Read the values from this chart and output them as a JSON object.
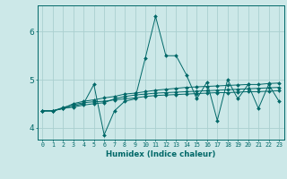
{
  "xlabel": "Humidex (Indice chaleur)",
  "ylabel": "",
  "bg_color": "#cce8e8",
  "line_color": "#006868",
  "grid_color": "#aad0d0",
  "xlim": [
    -0.5,
    23.5
  ],
  "ylim": [
    3.75,
    6.55
  ],
  "xtick_vals": [
    0,
    1,
    2,
    3,
    4,
    5,
    6,
    7,
    8,
    9,
    10,
    11,
    12,
    13,
    14,
    15,
    16,
    17,
    18,
    19,
    20,
    21,
    22,
    23
  ],
  "ytick_vals": [
    4,
    5,
    6
  ],
  "line1": [
    4.35,
    4.35,
    4.4,
    4.45,
    4.5,
    4.9,
    3.85,
    4.35,
    4.55,
    4.6,
    5.45,
    6.32,
    5.5,
    5.5,
    5.1,
    4.6,
    4.95,
    4.15,
    5.0,
    4.6,
    4.9,
    4.4,
    4.9,
    4.55
  ],
  "line2": [
    4.35,
    4.35,
    4.4,
    4.5,
    4.55,
    4.58,
    4.62,
    4.65,
    4.7,
    4.72,
    4.75,
    4.78,
    4.8,
    4.82,
    4.84,
    4.85,
    4.86,
    4.87,
    4.88,
    4.89,
    4.9,
    4.9,
    4.92,
    4.93
  ],
  "line3": [
    4.35,
    4.35,
    4.42,
    4.48,
    4.52,
    4.54,
    4.55,
    4.58,
    4.6,
    4.62,
    4.65,
    4.67,
    4.68,
    4.69,
    4.7,
    4.71,
    4.72,
    4.73,
    4.73,
    4.74,
    4.75,
    4.75,
    4.76,
    4.77
  ],
  "line4": [
    4.35,
    4.35,
    4.4,
    4.43,
    4.47,
    4.5,
    4.52,
    4.6,
    4.65,
    4.68,
    4.7,
    4.72,
    4.73,
    4.74,
    4.75,
    4.76,
    4.77,
    4.78,
    4.79,
    4.8,
    4.81,
    4.82,
    4.83,
    4.84
  ]
}
